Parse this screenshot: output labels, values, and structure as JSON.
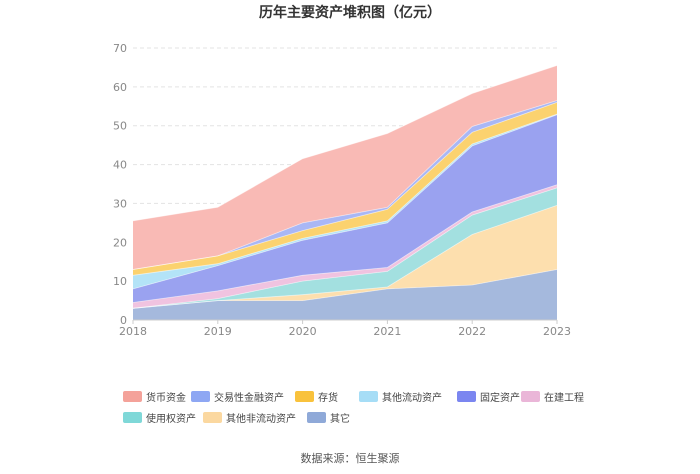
{
  "chart_data": {
    "type": "area",
    "stacked": true,
    "title": "历年主要资产堆积图（亿元）",
    "x": [
      "2018",
      "2019",
      "2020",
      "2021",
      "2022",
      "2023"
    ],
    "y_ticks": [
      0,
      10,
      20,
      30,
      40,
      50,
      60,
      70
    ],
    "ylim": [
      0,
      70
    ],
    "grid": true,
    "legend_position": "bottom",
    "series": [
      {
        "name": "其它",
        "color": "#a5b9dd",
        "values": [
          3.0,
          5.0,
          5.0,
          8.0,
          9.0,
          13.0
        ]
      },
      {
        "name": "其他非流动资产",
        "color": "#fddfae",
        "values": [
          0.0,
          0.0,
          1.5,
          0.5,
          13.0,
          16.5
        ]
      },
      {
        "name": "使用权资产",
        "color": "#a3e0e0",
        "values": [
          0.0,
          0.5,
          3.5,
          4.0,
          5.0,
          4.5
        ]
      },
      {
        "name": "在建工程",
        "color": "#f0c3e0",
        "values": [
          1.5,
          2.0,
          1.5,
          1.0,
          0.8,
          0.8
        ]
      },
      {
        "name": "固定资产",
        "color": "#9aa2f0",
        "values": [
          3.5,
          6.5,
          9.0,
          11.5,
          17.0,
          18.0
        ]
      },
      {
        "name": "其他流动资产",
        "color": "#b3e3f7",
        "values": [
          3.5,
          0.5,
          0.5,
          0.5,
          0.5,
          0.2
        ]
      },
      {
        "name": "存货",
        "color": "#fbd26f",
        "values": [
          1.5,
          2.0,
          2.0,
          3.0,
          3.0,
          3.0
        ]
      },
      {
        "name": "交易性金融资产",
        "color": "#a9b7f5",
        "values": [
          0.0,
          0.0,
          2.0,
          0.5,
          1.5,
          0.5
        ]
      },
      {
        "name": "货币资金",
        "color": "#f9bab5",
        "values": [
          12.5,
          12.5,
          16.5,
          19.0,
          8.5,
          9.0
        ]
      }
    ],
    "legend_order": [
      "货币资金",
      "交易性金融资产",
      "存货",
      "其他流动资产",
      "固定资产",
      "在建工程",
      "使用权资产",
      "其他非流动资产",
      "其它"
    ],
    "legend_swatch_colors": {
      "货币资金": "#f4a29a",
      "交易性金融资产": "#8ea7f3",
      "存货": "#f9c23c",
      "其他流动资产": "#a6ddf6",
      "固定资产": "#7b86f0",
      "在建工程": "#eab6d8",
      "使用权资产": "#7fd8d8",
      "其他非流动资产": "#fbd8a0",
      "其它": "#8fa9d8"
    }
  },
  "source": "数据来源：恒生聚源"
}
